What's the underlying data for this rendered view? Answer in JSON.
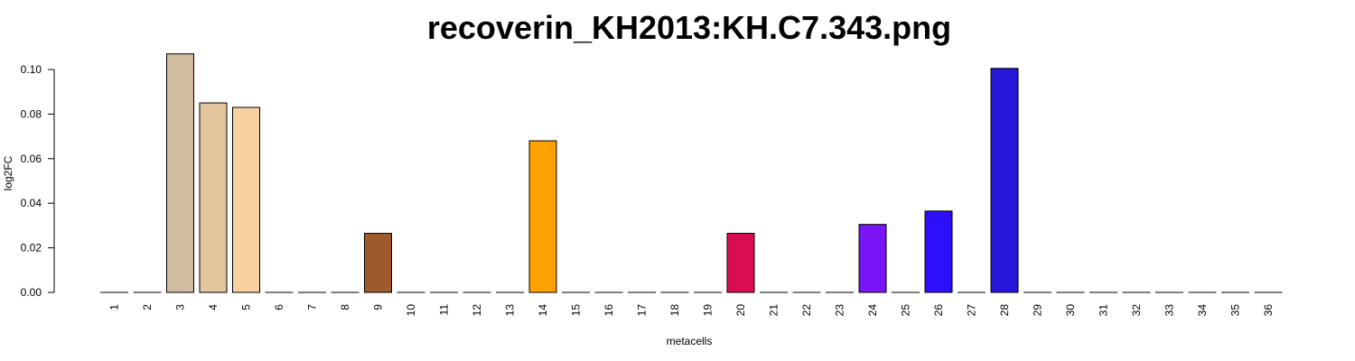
{
  "chart_data": {
    "type": "bar",
    "title": "recoverin_KH2013:KH.C7.343.png",
    "xlabel": "metacells",
    "ylabel": "log2FC",
    "ylim": [
      0,
      0.1
    ],
    "yticks": [
      "0.00",
      "0.02",
      "0.04",
      "0.06",
      "0.08",
      "0.10"
    ],
    "ytick_values": [
      0,
      0.02,
      0.04,
      0.06,
      0.08,
      0.1
    ],
    "grid": false,
    "categories": [
      "1",
      "2",
      "3",
      "4",
      "5",
      "6",
      "7",
      "8",
      "9",
      "10",
      "11",
      "12",
      "13",
      "14",
      "15",
      "16",
      "17",
      "18",
      "19",
      "20",
      "21",
      "22",
      "23",
      "24",
      "25",
      "26",
      "27",
      "28",
      "29",
      "30",
      "31",
      "32",
      "33",
      "34",
      "35",
      "36"
    ],
    "values": [
      0,
      0,
      0.107,
      0.085,
      0.083,
      0,
      0,
      0,
      0.0265,
      0,
      0,
      0,
      0,
      0.068,
      0,
      0,
      0,
      0,
      0,
      0.0265,
      0,
      0,
      0,
      0.0305,
      0,
      0.0365,
      0,
      0.1005,
      0,
      0,
      0,
      0,
      0,
      0,
      0,
      0
    ],
    "colors": [
      "#ffffff",
      "#ffffff",
      "#d2bca0",
      "#e4c69e",
      "#f6d09e",
      "#ffffff",
      "#ffffff",
      "#ffffff",
      "#9b5b2c",
      "#ffffff",
      "#ffffff",
      "#ffffff",
      "#ffffff",
      "#ffa200",
      "#ffffff",
      "#ffffff",
      "#ffffff",
      "#ffffff",
      "#ffffff",
      "#dc0c50",
      "#ffffff",
      "#ffffff",
      "#ffffff",
      "#7814f5",
      "#ffffff",
      "#2d0ffa",
      "#ffffff",
      "#2617d8",
      "#ffffff",
      "#ffffff",
      "#ffffff",
      "#ffffff",
      "#ffffff",
      "#ffffff",
      "#ffffff",
      "#ffffff"
    ]
  }
}
